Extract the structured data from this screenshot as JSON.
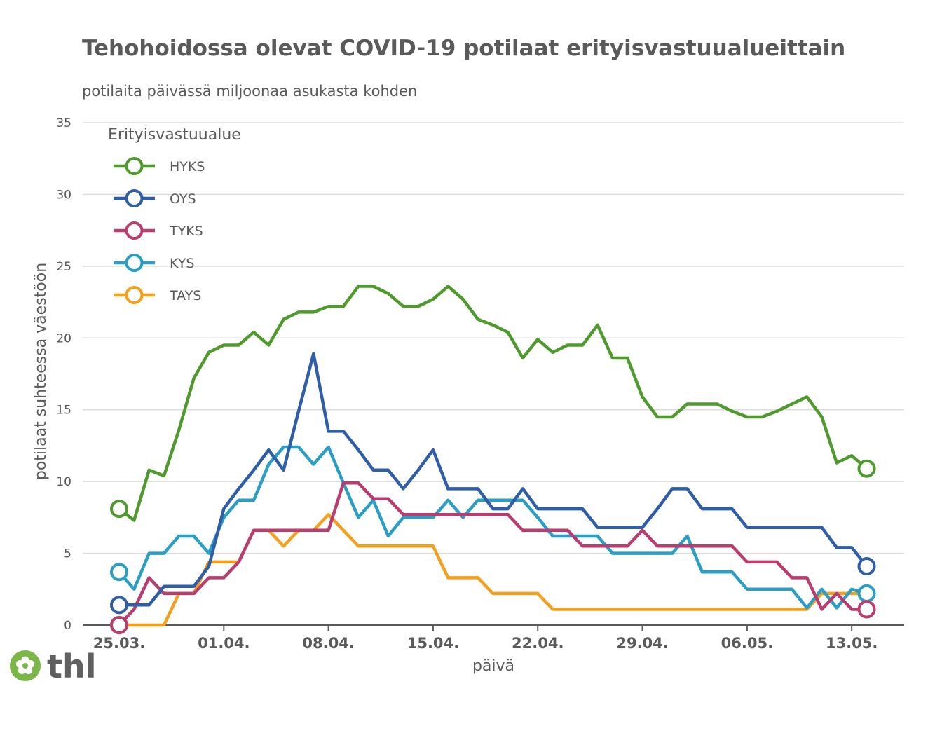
{
  "chart_data": {
    "type": "line",
    "title": "Tehohoidossa olevat COVID-19 potilaat erityisvastuualueittain",
    "subtitle": "potilaita päivässä miljoonaa asukasta kohden",
    "xlabel": "päivä",
    "ylabel": "potilaat suhteessa väestöön",
    "ylim": [
      0,
      35
    ],
    "yticks": [
      "0",
      "5",
      "10",
      "15",
      "20",
      "25",
      "30",
      "35"
    ],
    "xticks": [
      {
        "day": 0,
        "label": "25.03."
      },
      {
        "day": 7,
        "label": "01.04."
      },
      {
        "day": 14,
        "label": "08.04."
      },
      {
        "day": 21,
        "label": "15.04."
      },
      {
        "day": 28,
        "label": "22.04."
      },
      {
        "day": 35,
        "label": "29.04."
      },
      {
        "day": 42,
        "label": "06.05."
      },
      {
        "day": 49,
        "label": "13.05."
      }
    ],
    "grid": true,
    "legend": {
      "title": "Erityisvastuualue",
      "position": "top-left"
    },
    "series": [
      {
        "name": "HYKS",
        "color": "#4f9a2d",
        "values": [
          8.1,
          7.3,
          10.8,
          10.4,
          13.6,
          17.2,
          19.0,
          19.5,
          19.5,
          20.4,
          19.5,
          21.3,
          21.8,
          21.8,
          22.2,
          22.2,
          23.6,
          23.6,
          23.1,
          22.2,
          22.2,
          22.7,
          23.6,
          22.7,
          21.3,
          20.9,
          20.4,
          18.6,
          19.9,
          19.0,
          19.5,
          19.5,
          20.9,
          18.6,
          18.6,
          15.9,
          14.5,
          14.5,
          15.4,
          15.4,
          15.4,
          14.9,
          14.5,
          14.5,
          14.9,
          15.4,
          15.9,
          14.5,
          11.3,
          11.8,
          10.9
        ]
      },
      {
        "name": "OYS",
        "color": "#2f5ea8",
        "values": [
          1.4,
          1.4,
          1.4,
          2.7,
          2.7,
          2.7,
          4.1,
          8.1,
          9.5,
          10.8,
          12.2,
          10.8,
          14.9,
          18.9,
          13.5,
          13.5,
          12.2,
          10.8,
          10.8,
          9.5,
          10.8,
          12.2,
          9.5,
          9.5,
          9.5,
          8.1,
          8.1,
          9.5,
          8.1,
          8.1,
          8.1,
          8.1,
          6.8,
          6.8,
          6.8,
          6.8,
          8.1,
          9.5,
          9.5,
          8.1,
          8.1,
          8.1,
          6.8,
          6.8,
          6.8,
          6.8,
          6.8,
          6.8,
          5.4,
          5.4,
          4.1
        ]
      },
      {
        "name": "TYKS",
        "color": "#b93d6e",
        "values": [
          0,
          1.1,
          3.3,
          2.2,
          2.2,
          2.2,
          3.3,
          3.3,
          4.4,
          6.6,
          6.6,
          6.6,
          6.6,
          6.6,
          6.6,
          9.9,
          9.9,
          8.8,
          8.8,
          7.7,
          7.7,
          7.7,
          7.7,
          7.7,
          7.7,
          7.7,
          7.7,
          6.6,
          6.6,
          6.6,
          6.6,
          5.5,
          5.5,
          5.5,
          5.5,
          6.6,
          5.5,
          5.5,
          5.5,
          5.5,
          5.5,
          5.5,
          4.4,
          4.4,
          4.4,
          3.3,
          3.3,
          1.1,
          2.2,
          1.1,
          1.1
        ]
      },
      {
        "name": "KYS",
        "color": "#2a9ec4",
        "values": [
          3.7,
          2.5,
          5.0,
          5.0,
          6.2,
          6.2,
          5.0,
          7.5,
          8.7,
          8.7,
          11.2,
          12.4,
          12.4,
          11.2,
          12.4,
          9.9,
          7.5,
          8.7,
          6.2,
          7.5,
          7.5,
          7.5,
          8.7,
          7.5,
          8.7,
          8.7,
          8.7,
          8.7,
          7.5,
          6.2,
          6.2,
          6.2,
          6.2,
          5.0,
          5.0,
          5.0,
          5.0,
          5.0,
          6.2,
          3.7,
          3.7,
          3.7,
          2.5,
          2.5,
          2.5,
          2.5,
          1.2,
          2.5,
          1.2,
          2.5,
          2.2
        ]
      },
      {
        "name": "TAYS",
        "color": "#f2a01e",
        "values": [
          0,
          0,
          0,
          0,
          2.2,
          2.2,
          4.4,
          4.4,
          4.4,
          6.6,
          6.6,
          5.5,
          6.6,
          6.6,
          7.7,
          6.6,
          5.5,
          5.5,
          5.5,
          5.5,
          5.5,
          5.5,
          3.3,
          3.3,
          3.3,
          2.2,
          2.2,
          2.2,
          2.2,
          1.1,
          1.1,
          1.1,
          1.1,
          1.1,
          1.1,
          1.1,
          1.1,
          1.1,
          1.1,
          1.1,
          1.1,
          1.1,
          1.1,
          1.1,
          1.1,
          1.1,
          1.1,
          2.2,
          2.2,
          2.2,
          2.2
        ]
      }
    ]
  },
  "logo": {
    "text": "thl",
    "icon": "thl-flower-icon"
  }
}
